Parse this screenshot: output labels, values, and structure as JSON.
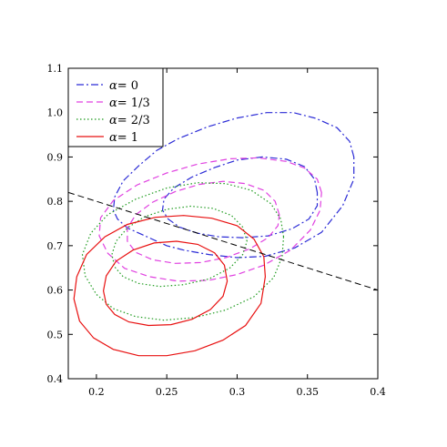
{
  "chart_data": {
    "type": "line",
    "title": "",
    "xlabel": "",
    "ylabel": "",
    "xlim": [
      0.18,
      0.4
    ],
    "ylim": [
      0.4,
      1.1
    ],
    "grid": false,
    "legend_position": "top-left",
    "xticks": [
      0.2,
      0.25,
      0.3,
      0.35,
      0.4
    ],
    "xtick_labels": [
      "0.2",
      "0.25",
      "0.3",
      "0.35",
      "0.4"
    ],
    "yticks": [
      0.4,
      0.5,
      0.6,
      0.7,
      0.8,
      0.9,
      1.0,
      1.1
    ],
    "ytick_labels": [
      "0.4",
      "0.5",
      "0.6",
      "0.7",
      "0.8",
      "0.9",
      "1.0",
      "1.1"
    ],
    "series": [
      {
        "name": "α= 0",
        "symbol": "α",
        "value_label": "= 0",
        "color": "#2b2bd6",
        "dash": "dashdot",
        "contours": [
          [
            [
              0.383,
              0.9
            ],
            [
              0.38,
              0.935
            ],
            [
              0.371,
              0.966
            ],
            [
              0.356,
              0.987
            ],
            [
              0.34,
              1.0
            ],
            [
              0.321,
              1.0
            ],
            [
              0.3,
              0.988
            ],
            [
              0.279,
              0.968
            ],
            [
              0.258,
              0.941
            ],
            [
              0.243,
              0.915
            ],
            [
              0.23,
              0.88
            ],
            [
              0.219,
              0.846
            ],
            [
              0.213,
              0.81
            ],
            [
              0.212,
              0.78
            ],
            [
              0.215,
              0.76
            ],
            [
              0.222,
              0.74
            ],
            [
              0.236,
              0.72
            ],
            [
              0.25,
              0.7
            ],
            [
              0.262,
              0.69
            ],
            [
              0.28,
              0.68
            ],
            [
              0.3,
              0.673
            ],
            [
              0.32,
              0.676
            ],
            [
              0.341,
              0.695
            ],
            [
              0.36,
              0.73
            ],
            [
              0.375,
              0.79
            ],
            [
              0.383,
              0.85
            ],
            [
              0.383,
              0.9
            ]
          ],
          [
            [
              0.357,
              0.82
            ],
            [
              0.355,
              0.85
            ],
            [
              0.348,
              0.878
            ],
            [
              0.335,
              0.895
            ],
            [
              0.318,
              0.9
            ],
            [
              0.3,
              0.893
            ],
            [
              0.284,
              0.876
            ],
            [
              0.268,
              0.855
            ],
            [
              0.255,
              0.83
            ],
            [
              0.248,
              0.805
            ],
            [
              0.247,
              0.78
            ],
            [
              0.251,
              0.76
            ],
            [
              0.259,
              0.742
            ],
            [
              0.272,
              0.728
            ],
            [
              0.287,
              0.72
            ],
            [
              0.304,
              0.718
            ],
            [
              0.322,
              0.722
            ],
            [
              0.339,
              0.738
            ],
            [
              0.351,
              0.76
            ],
            [
              0.357,
              0.79
            ],
            [
              0.357,
              0.82
            ]
          ]
        ]
      },
      {
        "name": "α= 1/3",
        "symbol": "α",
        "value_label": "= 1/3",
        "color": "#e040e0",
        "dash": "dashed",
        "contours": [
          [
            [
              0.36,
              0.82
            ],
            [
              0.357,
              0.85
            ],
            [
              0.348,
              0.875
            ],
            [
              0.335,
              0.89
            ],
            [
              0.315,
              0.898
            ],
            [
              0.295,
              0.896
            ],
            [
              0.272,
              0.884
            ],
            [
              0.25,
              0.864
            ],
            [
              0.229,
              0.837
            ],
            [
              0.212,
              0.802
            ],
            [
              0.203,
              0.763
            ],
            [
              0.202,
              0.722
            ],
            [
              0.208,
              0.683
            ],
            [
              0.22,
              0.649
            ],
            [
              0.238,
              0.63
            ],
            [
              0.258,
              0.62
            ],
            [
              0.28,
              0.622
            ],
            [
              0.3,
              0.635
            ],
            [
              0.319,
              0.656
            ],
            [
              0.338,
              0.69
            ],
            [
              0.352,
              0.735
            ],
            [
              0.359,
              0.78
            ],
            [
              0.36,
              0.82
            ]
          ],
          [
            [
              0.33,
              0.77
            ],
            [
              0.327,
              0.8
            ],
            [
              0.319,
              0.825
            ],
            [
              0.306,
              0.84
            ],
            [
              0.29,
              0.845
            ],
            [
              0.273,
              0.838
            ],
            [
              0.256,
              0.822
            ],
            [
              0.24,
              0.798
            ],
            [
              0.228,
              0.77
            ],
            [
              0.222,
              0.74
            ],
            [
              0.222,
              0.71
            ],
            [
              0.228,
              0.685
            ],
            [
              0.24,
              0.668
            ],
            [
              0.256,
              0.66
            ],
            [
              0.274,
              0.662
            ],
            [
              0.292,
              0.673
            ],
            [
              0.309,
              0.693
            ],
            [
              0.322,
              0.718
            ],
            [
              0.329,
              0.745
            ],
            [
              0.33,
              0.77
            ]
          ]
        ]
      },
      {
        "name": "α= 2/3",
        "symbol": "α",
        "value_label": "= 2/3",
        "color": "#1e9b1e",
        "dash": "dotted",
        "contours": [
          [
            [
              0.333,
              0.72
            ],
            [
              0.331,
              0.76
            ],
            [
              0.324,
              0.795
            ],
            [
              0.31,
              0.825
            ],
            [
              0.292,
              0.84
            ],
            [
              0.272,
              0.842
            ],
            [
              0.25,
              0.83
            ],
            [
              0.228,
              0.805
            ],
            [
              0.208,
              0.77
            ],
            [
              0.196,
              0.728
            ],
            [
              0.19,
              0.68
            ],
            [
              0.192,
              0.632
            ],
            [
              0.2,
              0.59
            ],
            [
              0.212,
              0.558
            ],
            [
              0.228,
              0.54
            ],
            [
              0.248,
              0.532
            ],
            [
              0.27,
              0.538
            ],
            [
              0.292,
              0.555
            ],
            [
              0.312,
              0.585
            ],
            [
              0.326,
              0.628
            ],
            [
              0.332,
              0.675
            ],
            [
              0.333,
              0.72
            ]
          ],
          [
            [
              0.307,
              0.71
            ],
            [
              0.304,
              0.742
            ],
            [
              0.296,
              0.768
            ],
            [
              0.283,
              0.784
            ],
            [
              0.267,
              0.789
            ],
            [
              0.25,
              0.782
            ],
            [
              0.234,
              0.765
            ],
            [
              0.222,
              0.74
            ],
            [
              0.214,
              0.71
            ],
            [
              0.211,
              0.68
            ],
            [
              0.213,
              0.652
            ],
            [
              0.219,
              0.63
            ],
            [
              0.23,
              0.615
            ],
            [
              0.245,
              0.608
            ],
            [
              0.262,
              0.612
            ],
            [
              0.28,
              0.625
            ],
            [
              0.295,
              0.65
            ],
            [
              0.304,
              0.68
            ],
            [
              0.307,
              0.71
            ]
          ]
        ]
      },
      {
        "name": "α= 1",
        "symbol": "α",
        "value_label": "= 1",
        "color": "#e81010",
        "dash": "solid",
        "contours": [
          [
            [
              0.32,
              0.63
            ],
            [
              0.319,
              0.675
            ],
            [
              0.312,
              0.715
            ],
            [
              0.3,
              0.745
            ],
            [
              0.282,
              0.762
            ],
            [
              0.262,
              0.768
            ],
            [
              0.242,
              0.764
            ],
            [
              0.222,
              0.748
            ],
            [
              0.206,
              0.72
            ],
            [
              0.193,
              0.68
            ],
            [
              0.186,
              0.63
            ],
            [
              0.184,
              0.58
            ],
            [
              0.188,
              0.53
            ],
            [
              0.198,
              0.492
            ],
            [
              0.212,
              0.466
            ],
            [
              0.23,
              0.452
            ],
            [
              0.25,
              0.452
            ],
            [
              0.27,
              0.463
            ],
            [
              0.29,
              0.487
            ],
            [
              0.306,
              0.52
            ],
            [
              0.317,
              0.57
            ],
            [
              0.32,
              0.63
            ]
          ],
          [
            [
              0.293,
              0.62
            ],
            [
              0.291,
              0.656
            ],
            [
              0.284,
              0.684
            ],
            [
              0.272,
              0.703
            ],
            [
              0.257,
              0.71
            ],
            [
              0.241,
              0.706
            ],
            [
              0.226,
              0.69
            ],
            [
              0.214,
              0.665
            ],
            [
              0.207,
              0.632
            ],
            [
              0.205,
              0.598
            ],
            [
              0.207,
              0.568
            ],
            [
              0.213,
              0.545
            ],
            [
              0.223,
              0.528
            ],
            [
              0.237,
              0.52
            ],
            [
              0.253,
              0.522
            ],
            [
              0.268,
              0.534
            ],
            [
              0.281,
              0.556
            ],
            [
              0.29,
              0.586
            ],
            [
              0.293,
              0.62
            ]
          ]
        ]
      }
    ],
    "reference_line": {
      "color": "#000000",
      "dash": "dashed",
      "points": [
        [
          0.18,
          0.82
        ],
        [
          0.4,
          0.6
        ]
      ]
    }
  }
}
